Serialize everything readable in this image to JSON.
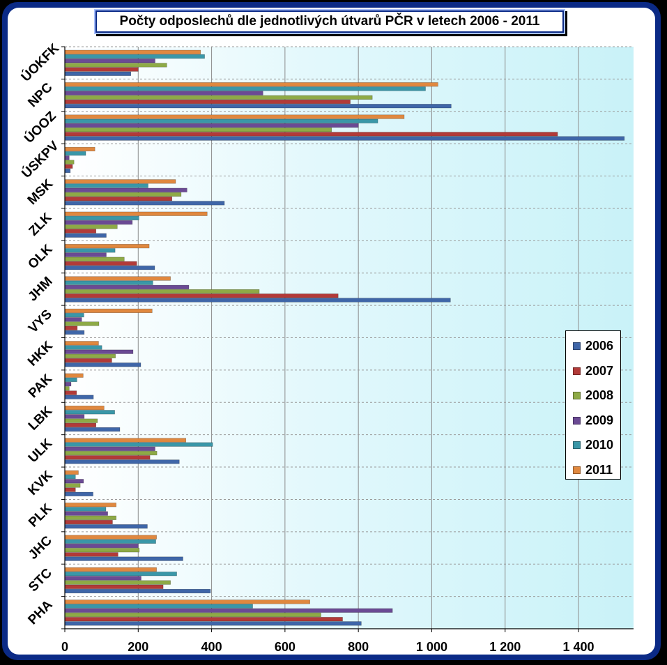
{
  "chart_data": {
    "type": "bar",
    "orientation": "horizontal",
    "title": "Počty odposlechů dle jednotlivých útvarů PČR  v letech 2006 - 2011",
    "xlabel": "",
    "ylabel": "",
    "xlim": [
      0,
      1550
    ],
    "xticks": [
      0,
      200,
      400,
      600,
      800,
      1000,
      1200,
      1400
    ],
    "xtick_labels": [
      "0",
      "200",
      "400",
      "600",
      "800",
      "1 000",
      "1 200",
      "1 400"
    ],
    "grid": "vertical",
    "legend_position": "right",
    "categories": [
      "ÚOKFK",
      "NPC",
      "ÚOOZ",
      "ÚSKPV",
      "MSK",
      "ZLK",
      "OLK",
      "JHM",
      "VYS",
      "HKK",
      "PAK",
      "LBK",
      "ULK",
      "KVK",
      "PLK",
      "JHC",
      "STC",
      "PHA"
    ],
    "series": [
      {
        "name": "2011",
        "color": "#e0883f",
        "values": [
          370,
          1017,
          925,
          82,
          302,
          388,
          230,
          288,
          238,
          92,
          50,
          107,
          330,
          37,
          140,
          250,
          250,
          668
        ]
      },
      {
        "name": "2010",
        "color": "#3a97a8",
        "values": [
          381,
          983,
          853,
          57,
          227,
          202,
          137,
          240,
          52,
          101,
          33,
          136,
          403,
          29,
          112,
          248,
          305,
          512
        ]
      },
      {
        "name": "2009",
        "color": "#6b4a94",
        "values": [
          246,
          540,
          800,
          12,
          333,
          184,
          113,
          338,
          46,
          186,
          17,
          53,
          246,
          51,
          117,
          200,
          208,
          893
        ]
      },
      {
        "name": "2008",
        "color": "#8eaa46",
        "values": [
          278,
          838,
          727,
          25,
          317,
          143,
          162,
          530,
          93,
          138,
          12,
          89,
          251,
          42,
          140,
          203,
          288,
          698
        ]
      },
      {
        "name": "2007",
        "color": "#b23a38",
        "values": [
          200,
          778,
          1343,
          21,
          292,
          85,
          196,
          745,
          34,
          128,
          32,
          85,
          232,
          29,
          130,
          145,
          268,
          757
        ]
      },
      {
        "name": "2006",
        "color": "#3f66a8",
        "values": [
          180,
          1053,
          1525,
          15,
          435,
          113,
          245,
          1051,
          53,
          207,
          78,
          150,
          312,
          77,
          225,
          322,
          397,
          808
        ]
      }
    ]
  }
}
